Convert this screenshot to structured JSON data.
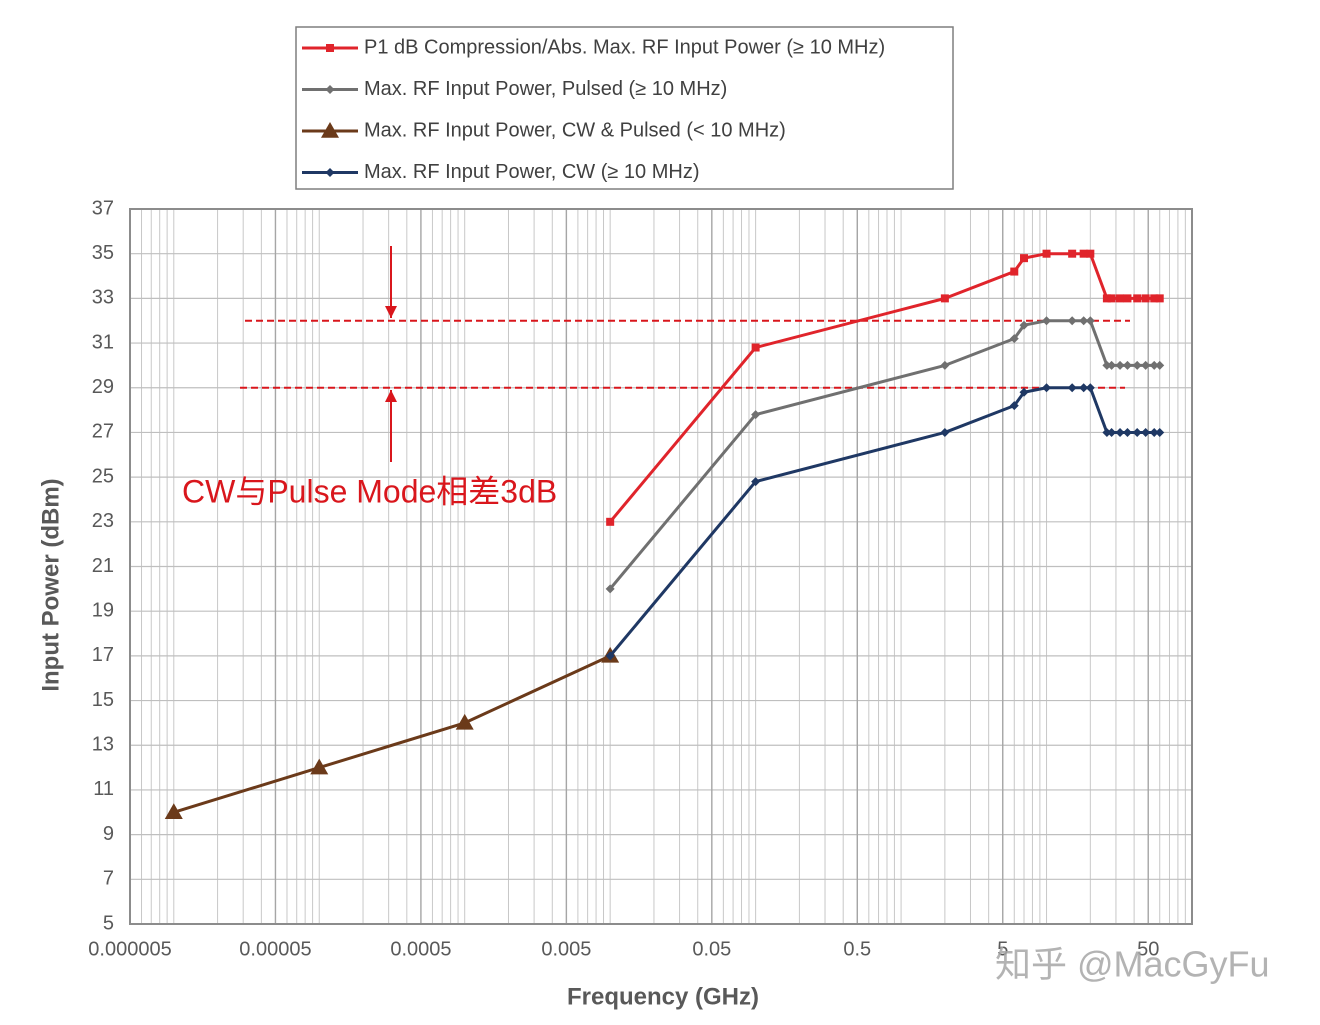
{
  "chart_data": {
    "type": "line",
    "x_label": "Frequency (GHz)",
    "y_label": "Input Power (dBm)",
    "xscale": "log",
    "xlim": [
      5e-06,
      100
    ],
    "xticks": [
      5e-06,
      5e-05,
      0.0005,
      0.005,
      0.05,
      0.5,
      5,
      50
    ],
    "ylim": [
      5,
      37
    ],
    "yticks": [
      5,
      7,
      9,
      11,
      13,
      15,
      17,
      19,
      21,
      23,
      25,
      27,
      29,
      31,
      33,
      35,
      37
    ],
    "grid": true,
    "legend": "top",
    "series": [
      {
        "name": "P1 dB Compression/Abs. Max. RF Input Power (≥ 10 MHz)",
        "color": "#e0242b",
        "marker": "square",
        "x": [
          0.01,
          0.1,
          2,
          6,
          7,
          10,
          15,
          18,
          20,
          26,
          28,
          32,
          36,
          42,
          48,
          55,
          60
        ],
        "values": [
          23,
          30.8,
          33,
          34.2,
          34.8,
          35,
          35,
          35,
          35,
          33,
          33,
          33,
          33,
          33,
          33,
          33,
          33
        ]
      },
      {
        "name": "Max. RF Input Power, Pulsed (≥ 10 MHz)",
        "color": "#707070",
        "marker": "diamond",
        "x": [
          0.01,
          0.1,
          2,
          6,
          7,
          10,
          15,
          18,
          20,
          26,
          28,
          32,
          36,
          42,
          48,
          55,
          60
        ],
        "values": [
          20,
          27.8,
          30,
          31.2,
          31.8,
          32,
          32,
          32,
          32,
          30,
          30,
          30,
          30,
          30,
          30,
          30,
          30
        ]
      },
      {
        "name": "Max. RF Input Power, CW & Pulsed (< 10 MHz)",
        "color": "#6b3a1a",
        "marker": "triangle",
        "x": [
          1e-05,
          0.0001,
          0.001,
          0.01
        ],
        "values": [
          10,
          12,
          14,
          17
        ]
      },
      {
        "name": "Max. RF Input Power, CW (≥ 10 MHz)",
        "color": "#1f3864",
        "marker": "diamond",
        "x": [
          0.01,
          0.1,
          2,
          6,
          7,
          10,
          15,
          18,
          20,
          26,
          28,
          32,
          36,
          42,
          48,
          55,
          60
        ],
        "values": [
          17,
          24.8,
          27,
          28.2,
          28.8,
          29,
          29,
          29,
          29,
          27,
          27,
          27,
          27,
          27,
          27,
          27,
          27
        ]
      }
    ],
    "reference_lines": [
      32,
      29
    ],
    "reference_color": "#d9161c",
    "annotation": "CW与Pulse Mode相差3dB",
    "watermark": "知乎 @MacGyFu"
  }
}
